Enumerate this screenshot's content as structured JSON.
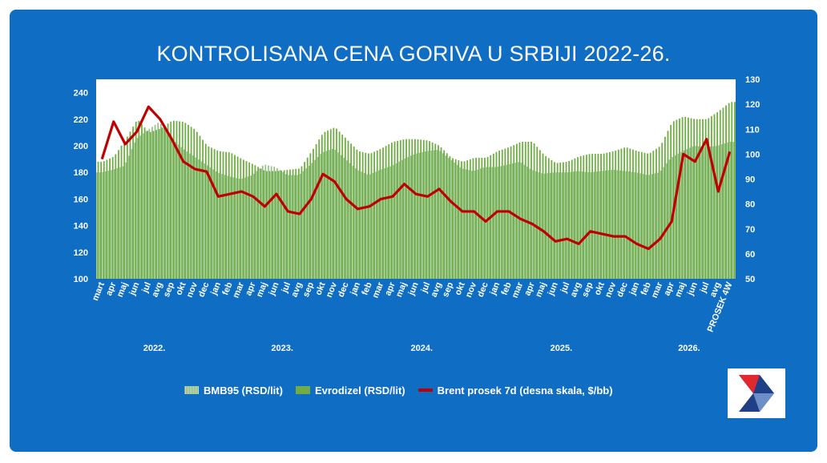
{
  "title": "KONTROLISANA CENA GORIVA  U SRBIJI 2022-26.",
  "colors": {
    "background": "#0f6ec4",
    "plot_area": "#ffffff",
    "bmb95": "#8fbf84",
    "evrodizel": "#70ad47",
    "brent": "#c00000"
  },
  "logo": {
    "icon": "arrow-logo-icon"
  },
  "legend": {
    "placement": "bottom-center",
    "items": [
      {
        "id": "bmb95",
        "label": "BMB95 (RSD/lit)"
      },
      {
        "id": "evrodizel",
        "label": "Evrodizel (RSD/lit)"
      },
      {
        "id": "brent",
        "label": "Brent prosek  7d (desna skala, $/bb)"
      }
    ]
  },
  "chart_data": {
    "type": "bar",
    "title": "KONTROLISANA CENA GORIVA  U SRBIJI 2022-26.",
    "grid": false,
    "left_axis": {
      "min": 100,
      "max": 250,
      "ticks": [
        100,
        120,
        140,
        160,
        180,
        200,
        220,
        240
      ]
    },
    "right_axis": {
      "min": 50,
      "max": 130,
      "ticks": [
        50,
        60,
        70,
        80,
        90,
        100,
        110,
        120,
        130
      ]
    },
    "month_labels": [
      "mart",
      "apr",
      "maj",
      "jun",
      "jul",
      "avg",
      "sep",
      "okt",
      "nov",
      "dec",
      "jan",
      "feb",
      "mar",
      "apr",
      "maj",
      "jun",
      "jul",
      "avg",
      "sep",
      "okt",
      "nov",
      "dec",
      "jan",
      "feb",
      "mar",
      "apr",
      "maj",
      "jun",
      "jul",
      "avg",
      "sep",
      "okt",
      "nov",
      "dec",
      "jan",
      "feb",
      "mar",
      "apr",
      "maj",
      "jun",
      "jul",
      "avg",
      "sep",
      "okt",
      "nov",
      "dec",
      "jan",
      "feb",
      "mar",
      "apr",
      "maj",
      "jun",
      "jul",
      "avg",
      "PROSEK 4W"
    ],
    "year_labels": [
      {
        "label": "2022.",
        "month_index": 4.5
      },
      {
        "label": "2023.",
        "month_index": 15.5
      },
      {
        "label": "2024.",
        "month_index": 27.5
      },
      {
        "label": "2025.",
        "month_index": 39.5
      },
      {
        "label": "2026.",
        "month_index": 50.5
      }
    ],
    "series": [
      {
        "name": "BMB95 (RSD/lit)",
        "axis": "left",
        "type": "bar",
        "values": [
          180,
          182,
          185,
          205,
          212,
          218,
          206,
          198,
          192,
          186,
          180,
          177,
          175,
          178,
          186,
          184,
          178,
          178,
          186,
          195,
          198,
          190,
          182,
          178,
          182,
          185,
          190,
          194,
          196,
          197,
          190,
          183,
          181,
          184,
          184,
          186,
          188,
          182,
          179,
          180,
          180,
          181,
          180,
          181,
          182,
          181,
          180,
          178,
          180,
          191,
          196,
          200,
          199,
          200,
          203
        ]
      },
      {
        "name": "Evrodizel (RSD/lit)",
        "axis": "left",
        "type": "bar",
        "values": [
          188,
          192,
          205,
          220,
          210,
          213,
          219,
          218,
          212,
          200,
          196,
          195,
          190,
          186,
          181,
          181,
          182,
          183,
          196,
          210,
          214,
          205,
          196,
          194,
          198,
          203,
          205,
          205,
          204,
          200,
          191,
          188,
          191,
          191,
          196,
          199,
          203,
          203,
          193,
          187,
          188,
          192,
          194,
          194,
          196,
          199,
          196,
          194,
          200,
          218,
          222,
          220,
          220,
          226,
          233
        ]
      },
      {
        "name": "Brent prosek  7d (desna skala, $/bb)",
        "axis": "right",
        "type": "line",
        "values": [
          98,
          113,
          104,
          109,
          119,
          114,
          106,
          97,
          94,
          93,
          83,
          84,
          85,
          83,
          79,
          84,
          77,
          76,
          82,
          92,
          89,
          82,
          78,
          79,
          82,
          83,
          88,
          84,
          83,
          86,
          81,
          77,
          77,
          73,
          77,
          77,
          74,
          72,
          69,
          65,
          66,
          64,
          69,
          68,
          67,
          67,
          64,
          62,
          66,
          73,
          100,
          97,
          106,
          85,
          101
        ]
      }
    ]
  }
}
